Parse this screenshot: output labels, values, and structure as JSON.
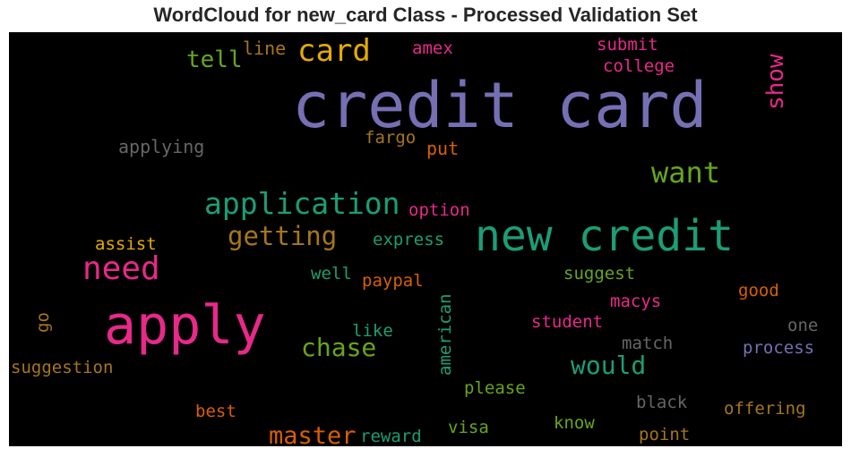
{
  "chart_data": {
    "type": "wordcloud",
    "title": "WordCloud for new_card Class - Processed Validation Set",
    "background": "#000000",
    "words": [
      {
        "text": "credit card",
        "color": "#7570b3"
      },
      {
        "text": "new credit",
        "color": "#1b9e77"
      },
      {
        "text": "apply",
        "color": "#e7298a"
      },
      {
        "text": "application",
        "color": "#1b9e77"
      },
      {
        "text": "card",
        "color": "#e6ab02"
      },
      {
        "text": "need",
        "color": "#e7298a"
      },
      {
        "text": "want",
        "color": "#66a61e"
      },
      {
        "text": "getting",
        "color": "#a6761d"
      },
      {
        "text": "chase",
        "color": "#66a61e"
      },
      {
        "text": "would",
        "color": "#1b9e77"
      },
      {
        "text": "master",
        "color": "#d95f02"
      },
      {
        "text": "tell",
        "color": "#66a61e"
      },
      {
        "text": "show",
        "color": "#e7298a"
      },
      {
        "text": "line",
        "color": "#a6761d"
      },
      {
        "text": "amex",
        "color": "#e7298a"
      },
      {
        "text": "submit",
        "color": "#e7298a"
      },
      {
        "text": "college",
        "color": "#e7298a"
      },
      {
        "text": "applying",
        "color": "#666666"
      },
      {
        "text": "fargo",
        "color": "#a6761d"
      },
      {
        "text": "put",
        "color": "#d95f02"
      },
      {
        "text": "option",
        "color": "#e7298a"
      },
      {
        "text": "express",
        "color": "#1b9e77"
      },
      {
        "text": "assist",
        "color": "#e6ab02"
      },
      {
        "text": "well",
        "color": "#1b9e77"
      },
      {
        "text": "paypal",
        "color": "#d95f02"
      },
      {
        "text": "american",
        "color": "#1b9e77"
      },
      {
        "text": "suggest",
        "color": "#66a61e"
      },
      {
        "text": "macys",
        "color": "#e7298a"
      },
      {
        "text": "good",
        "color": "#d95f02"
      },
      {
        "text": "student",
        "color": "#e7298a"
      },
      {
        "text": "one",
        "color": "#666666"
      },
      {
        "text": "go",
        "color": "#a6761d"
      },
      {
        "text": "like",
        "color": "#1b9e77"
      },
      {
        "text": "match",
        "color": "#666666"
      },
      {
        "text": "process",
        "color": "#7570b3"
      },
      {
        "text": "suggestion",
        "color": "#a6761d"
      },
      {
        "text": "please",
        "color": "#66a61e"
      },
      {
        "text": "black",
        "color": "#666666"
      },
      {
        "text": "best",
        "color": "#d95f02"
      },
      {
        "text": "know",
        "color": "#66a61e"
      },
      {
        "text": "offering",
        "color": "#a6761d"
      },
      {
        "text": "reward",
        "color": "#1b9e77"
      },
      {
        "text": "visa",
        "color": "#66a61e"
      },
      {
        "text": "point",
        "color": "#a6761d"
      }
    ]
  }
}
